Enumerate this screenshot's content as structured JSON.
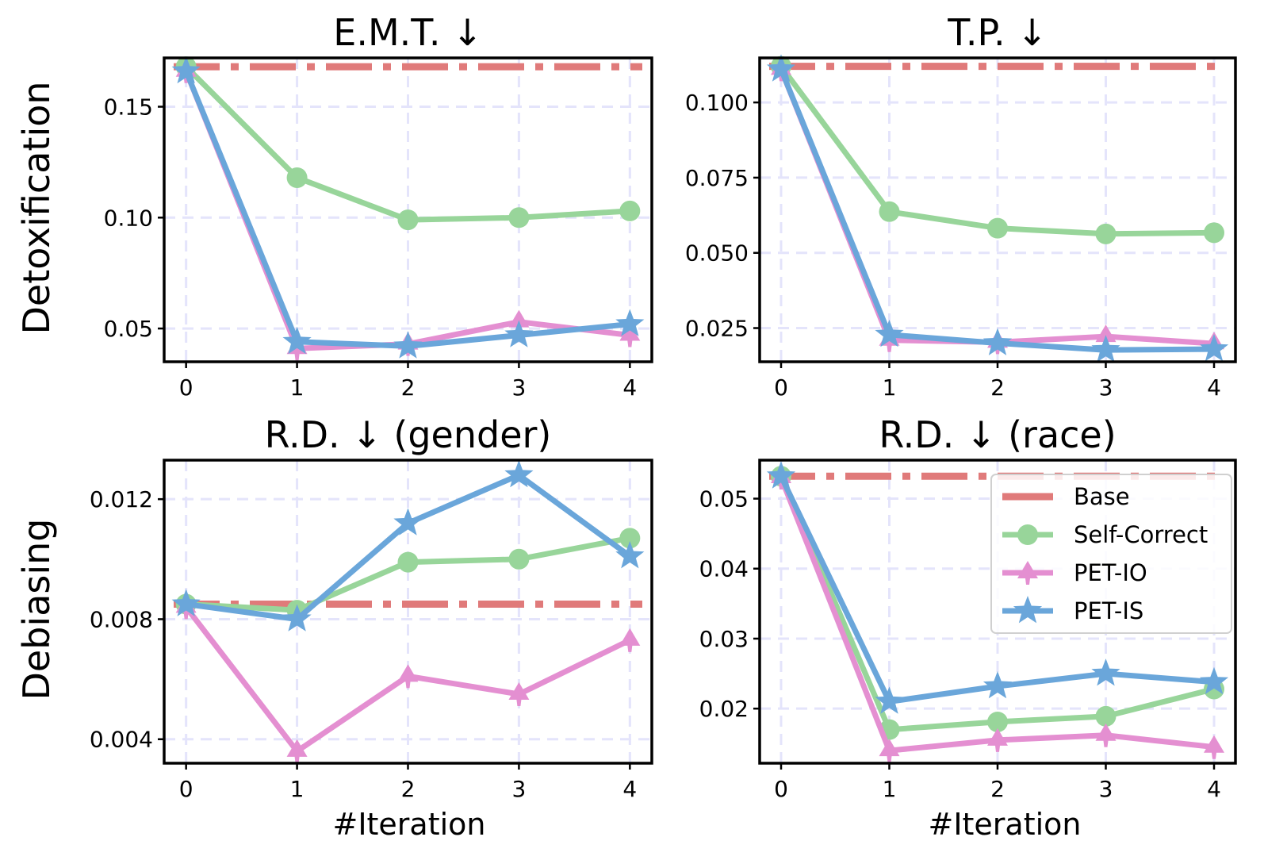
{
  "figure": {
    "row_labels": [
      "Detoxification",
      "Debiasing"
    ],
    "xlabel": "#Iteration"
  },
  "legend": {
    "position": "upper-right of bottom-right panel",
    "entries": [
      {
        "key": "base",
        "label": "Base"
      },
      {
        "key": "self_correct",
        "label": "Self-Correct"
      },
      {
        "key": "pet_io",
        "label": "PET-IO"
      },
      {
        "key": "pet_is",
        "label": "PET-IS"
      }
    ]
  },
  "colors": {
    "base": "#e07a7a",
    "self_correct": "#98d59a",
    "pet_io": "#e48fd1",
    "pet_is": "#6aa6da",
    "grid": "#e4e4fb"
  },
  "chart_data": [
    {
      "type": "line",
      "title": "E.M.T.  ↓",
      "ylabel": "Detoxification",
      "xlabel": "",
      "x": [
        0,
        1,
        2,
        3,
        4
      ],
      "xticks": [
        "0",
        "1",
        "2",
        "3",
        "4"
      ],
      "ylim": [
        0.035,
        0.172
      ],
      "yticks": [
        0.05,
        0.1,
        0.15
      ],
      "ytick_labels": [
        "0.05",
        "0.10",
        "0.15"
      ],
      "grid": true,
      "base": 0.168,
      "series": [
        {
          "key": "self_correct",
          "name": "Self-Correct",
          "values": [
            0.168,
            0.118,
            0.099,
            0.1,
            0.103
          ]
        },
        {
          "key": "pet_io",
          "name": "PET-IO",
          "values": [
            0.166,
            0.041,
            0.043,
            0.053,
            0.047
          ]
        },
        {
          "key": "pet_is",
          "name": "PET-IS",
          "values": [
            0.166,
            0.044,
            0.042,
            0.047,
            0.052
          ]
        }
      ]
    },
    {
      "type": "line",
      "title": "T.P.  ↓",
      "ylabel": "",
      "xlabel": "",
      "x": [
        0,
        1,
        2,
        3,
        4
      ],
      "xticks": [
        "0",
        "1",
        "2",
        "3",
        "4"
      ],
      "ylim": [
        0.0138,
        0.1148
      ],
      "yticks": [
        0.025,
        0.05,
        0.075,
        0.1
      ],
      "ytick_labels": [
        "0.025",
        "0.050",
        "0.075",
        "0.100"
      ],
      "grid": true,
      "base": 0.112,
      "series": [
        {
          "key": "self_correct",
          "name": "Self-Correct",
          "values": [
            0.112,
            0.0637,
            0.0582,
            0.0563,
            0.0567
          ]
        },
        {
          "key": "pet_io",
          "name": "PET-IO",
          "values": [
            0.111,
            0.021,
            0.0203,
            0.0222,
            0.0198
          ]
        },
        {
          "key": "pet_is",
          "name": "PET-IS",
          "values": [
            0.111,
            0.0228,
            0.02,
            0.0177,
            0.018
          ]
        }
      ]
    },
    {
      "type": "line",
      "title": "R.D.  ↓  (gender)",
      "ylabel": "Debiasing",
      "xlabel": "#Iteration",
      "x": [
        0,
        1,
        2,
        3,
        4
      ],
      "xticks": [
        "0",
        "1",
        "2",
        "3",
        "4"
      ],
      "ylim": [
        0.0032,
        0.0133
      ],
      "yticks": [
        0.004,
        0.008,
        0.012
      ],
      "ytick_labels": [
        "0.004",
        "0.008",
        "0.012"
      ],
      "grid": true,
      "base": 0.0085,
      "series": [
        {
          "key": "self_correct",
          "name": "Self-Correct",
          "values": [
            0.0085,
            0.0083,
            0.0099,
            0.01,
            0.0107
          ]
        },
        {
          "key": "pet_io",
          "name": "PET-IO",
          "values": [
            0.0084,
            0.0036,
            0.0061,
            0.0055,
            0.0073
          ]
        },
        {
          "key": "pet_is",
          "name": "PET-IS",
          "values": [
            0.0085,
            0.008,
            0.0112,
            0.0128,
            0.0101
          ]
        }
      ]
    },
    {
      "type": "line",
      "title": "R.D.  ↓  (race)",
      "ylabel": "",
      "xlabel": "#Iteration",
      "x": [
        0,
        1,
        2,
        3,
        4
      ],
      "xticks": [
        "0",
        "1",
        "2",
        "3",
        "4"
      ],
      "ylim": [
        0.0122,
        0.0555
      ],
      "yticks": [
        0.02,
        0.03,
        0.04,
        0.05
      ],
      "ytick_labels": [
        "0.02",
        "0.03",
        "0.04",
        "0.05"
      ],
      "grid": true,
      "base": 0.0532,
      "series": [
        {
          "key": "self_correct",
          "name": "Self-Correct",
          "values": [
            0.0532,
            0.017,
            0.0181,
            0.0189,
            0.0228
          ]
        },
        {
          "key": "pet_io",
          "name": "PET-IO",
          "values": [
            0.053,
            0.014,
            0.0155,
            0.0162,
            0.0145
          ]
        },
        {
          "key": "pet_is",
          "name": "PET-IS",
          "values": [
            0.0532,
            0.021,
            0.0232,
            0.025,
            0.0238
          ]
        }
      ]
    }
  ]
}
